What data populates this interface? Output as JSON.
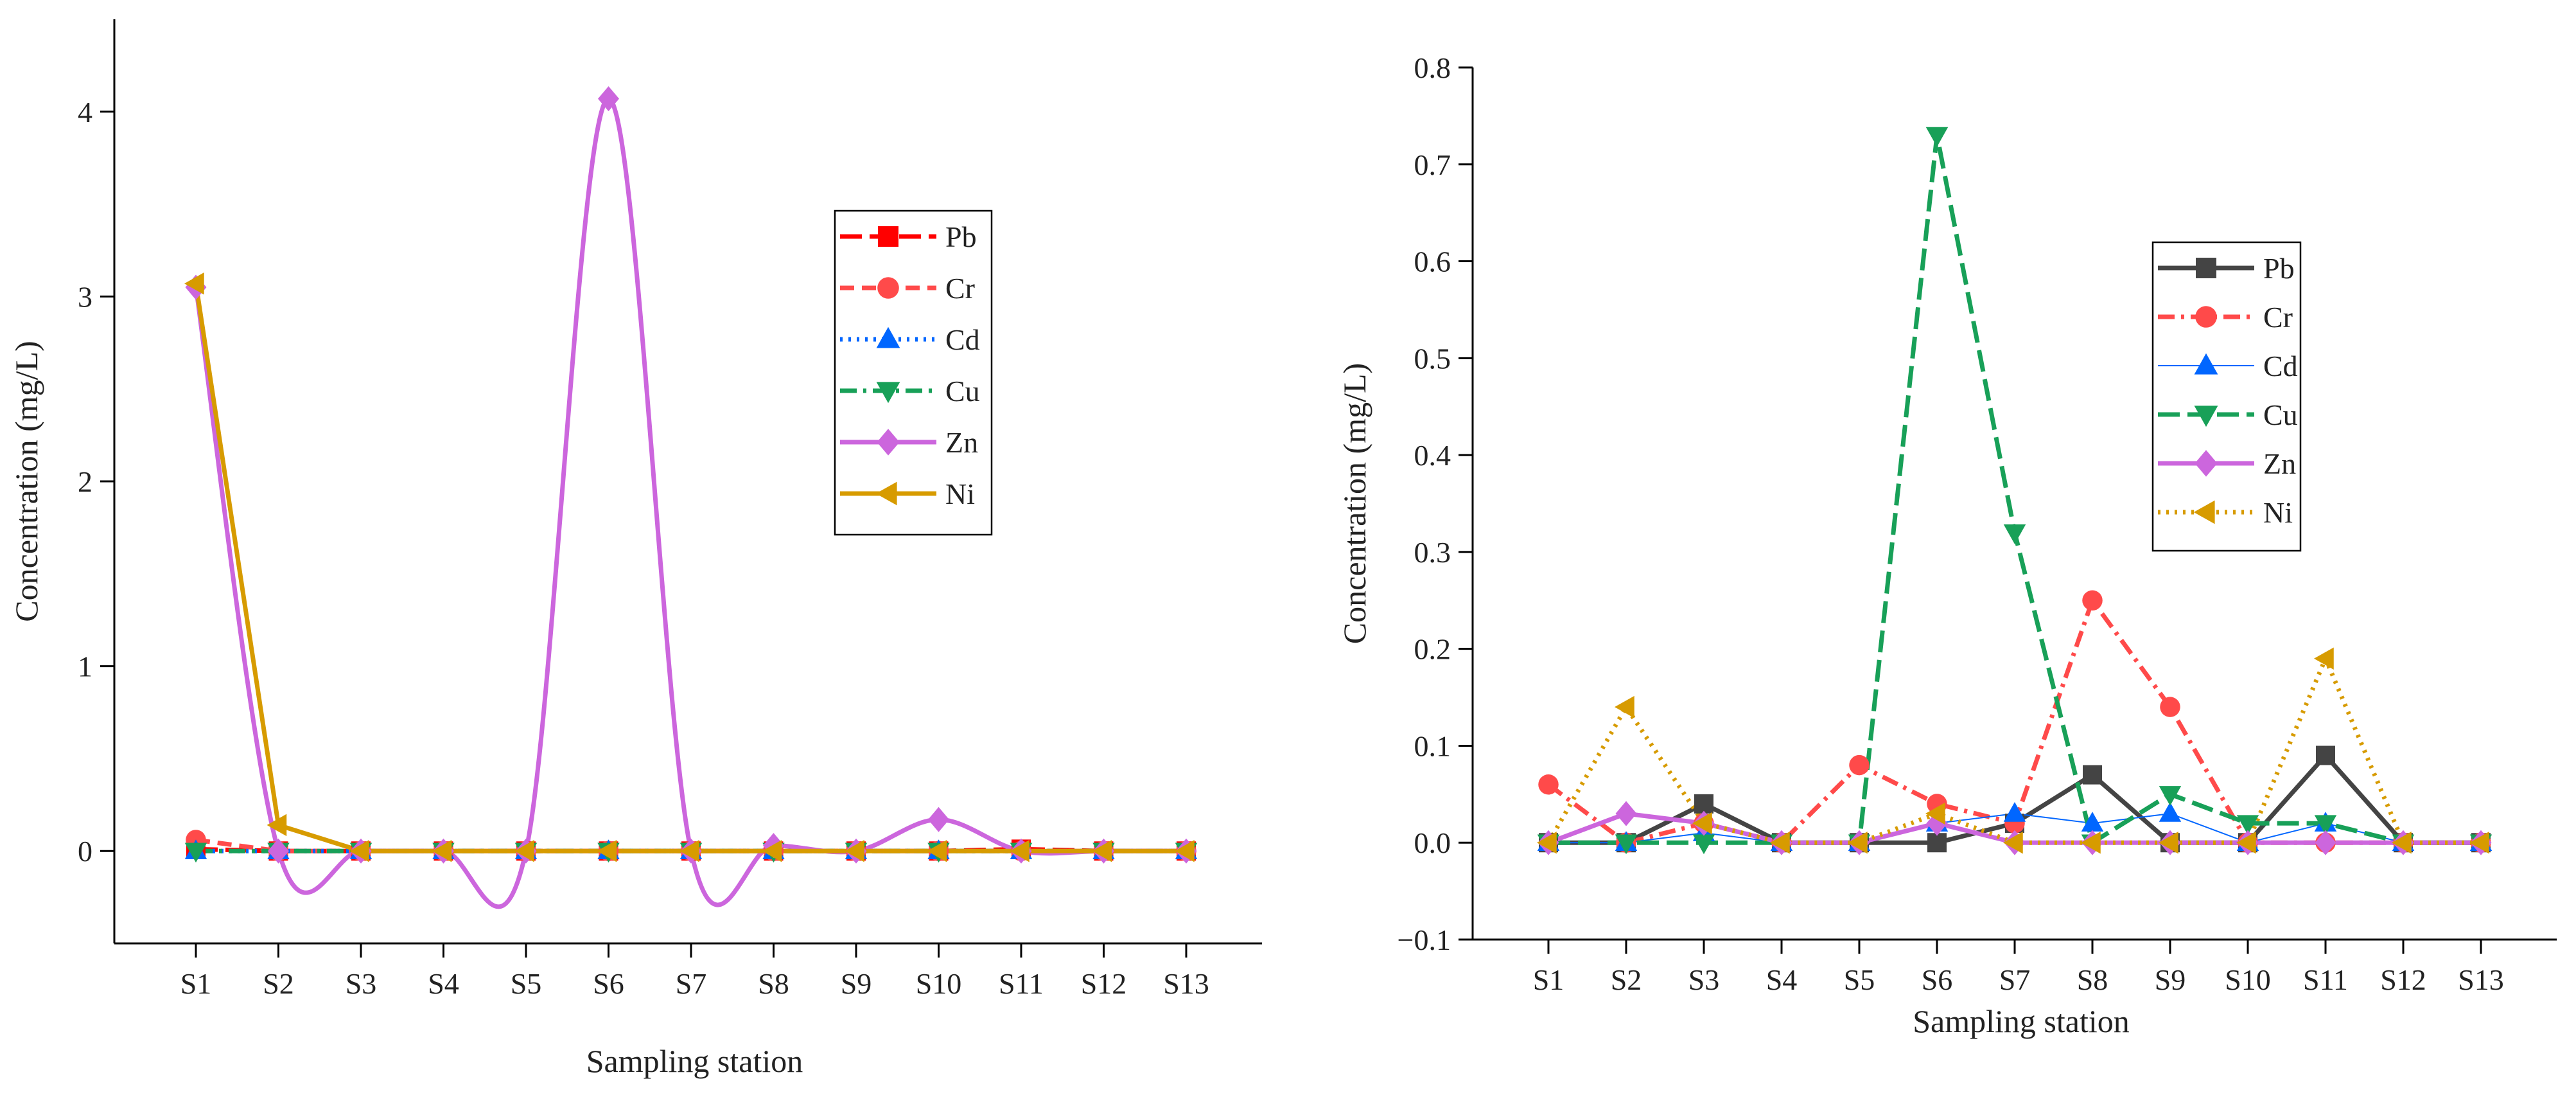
{
  "chart_data": [
    {
      "type": "line",
      "smoothed_series": [
        "Zn"
      ],
      "categories": [
        "S1",
        "S2",
        "S3",
        "S4",
        "S5",
        "S6",
        "S7",
        "S8",
        "S9",
        "S10",
        "S11",
        "S12",
        "S13"
      ],
      "xlabel": "Sampling station",
      "ylabel": "Concentration (mg/L)",
      "ylim": [
        -0.5,
        4.5
      ],
      "yticks": [
        0,
        1,
        2,
        3,
        4
      ],
      "ytick_labels": [
        "0",
        "1",
        "2",
        "3",
        "4"
      ],
      "legend_position": "upper-right",
      "series": [
        {
          "name": "Pb",
          "color": "#ff0000",
          "marker": "square",
          "dash": "long-dash",
          "values": [
            0.01,
            0,
            0,
            0,
            0,
            0,
            0,
            0,
            0,
            0,
            0.01,
            0,
            0
          ]
        },
        {
          "name": "Cr",
          "color": "#ff4a4a",
          "marker": "circle",
          "dash": "dash",
          "values": [
            0.06,
            0,
            0,
            0,
            0,
            0,
            0,
            0,
            0,
            0,
            0,
            0,
            0
          ]
        },
        {
          "name": "Cd",
          "color": "#0066ff",
          "marker": "triangle-up",
          "dash": "dot",
          "values": [
            0,
            0,
            0,
            0,
            0,
            0,
            0,
            0,
            0,
            0,
            0,
            0,
            0
          ]
        },
        {
          "name": "Cu",
          "color": "#18a058",
          "marker": "triangle-down",
          "dash": "dash-dot",
          "values": [
            0,
            0,
            0,
            0,
            0,
            0,
            0,
            0,
            0,
            0,
            0,
            0,
            0
          ]
        },
        {
          "name": "Zn",
          "color": "#cc66dd",
          "marker": "diamond",
          "dash": "solid",
          "values": [
            3.05,
            0,
            0,
            0,
            0,
            4.07,
            0,
            0.03,
            0,
            0.17,
            0,
            0,
            0
          ]
        },
        {
          "name": "Ni",
          "color": "#d79b00",
          "marker": "triangle-left",
          "dash": "solid",
          "values": [
            3.07,
            0.14,
            0,
            0,
            0,
            0,
            0,
            0,
            0,
            0,
            0,
            0,
            0
          ]
        }
      ]
    },
    {
      "type": "line",
      "categories": [
        "S1",
        "S2",
        "S3",
        "S4",
        "S5",
        "S6",
        "S7",
        "S8",
        "S9",
        "S10",
        "S11",
        "S12",
        "S13"
      ],
      "xlabel": "Sampling station",
      "ylabel": "Concentration (mg/L)",
      "ylim": [
        -0.1,
        0.8
      ],
      "yticks": [
        -0.1,
        0,
        0.1,
        0.2,
        0.3,
        0.4,
        0.5,
        0.6,
        0.7,
        0.8
      ],
      "ytick_labels": [
        "−0.1",
        "0.0",
        "0.1",
        "0.2",
        "0.3",
        "0.4",
        "0.5",
        "0.6",
        "0.7",
        "0.8"
      ],
      "legend_position": "upper-right",
      "series": [
        {
          "name": "Pb",
          "color": "#444444",
          "marker": "square",
          "dash": "solid",
          "values": [
            0,
            0,
            0.04,
            0,
            0,
            0,
            0.02,
            0.07,
            0,
            0,
            0.09,
            0,
            0
          ]
        },
        {
          "name": "Cr",
          "color": "#ff4a4a",
          "marker": "circle",
          "dash": "dash-dot",
          "values": [
            0.06,
            0,
            0.02,
            0,
            0.08,
            0.04,
            0.02,
            0.25,
            0.14,
            0,
            0,
            0,
            0
          ]
        },
        {
          "name": "Cd",
          "color": "#0066ff",
          "marker": "triangle-up",
          "dash": "thin",
          "values": [
            0,
            0,
            0.01,
            0,
            0,
            0.02,
            0.03,
            0.02,
            0.03,
            0,
            0.02,
            0,
            0
          ]
        },
        {
          "name": "Cu",
          "color": "#18a058",
          "marker": "triangle-down",
          "dash": "long-dash",
          "values": [
            0,
            0,
            0,
            0,
            0,
            0.73,
            0.32,
            0,
            0.05,
            0.02,
            0.02,
            0,
            0
          ]
        },
        {
          "name": "Zn",
          "color": "#cc66dd",
          "marker": "diamond",
          "dash": "solid",
          "values": [
            0,
            0.03,
            0.02,
            0,
            0,
            0.02,
            0,
            0,
            0,
            0,
            0,
            0,
            0
          ]
        },
        {
          "name": "Ni",
          "color": "#d79b00",
          "marker": "triangle-left",
          "dash": "dot",
          "values": [
            0,
            0.14,
            0.02,
            0,
            0,
            0.03,
            0,
            0,
            0,
            0,
            0.19,
            0,
            0
          ]
        }
      ]
    }
  ]
}
